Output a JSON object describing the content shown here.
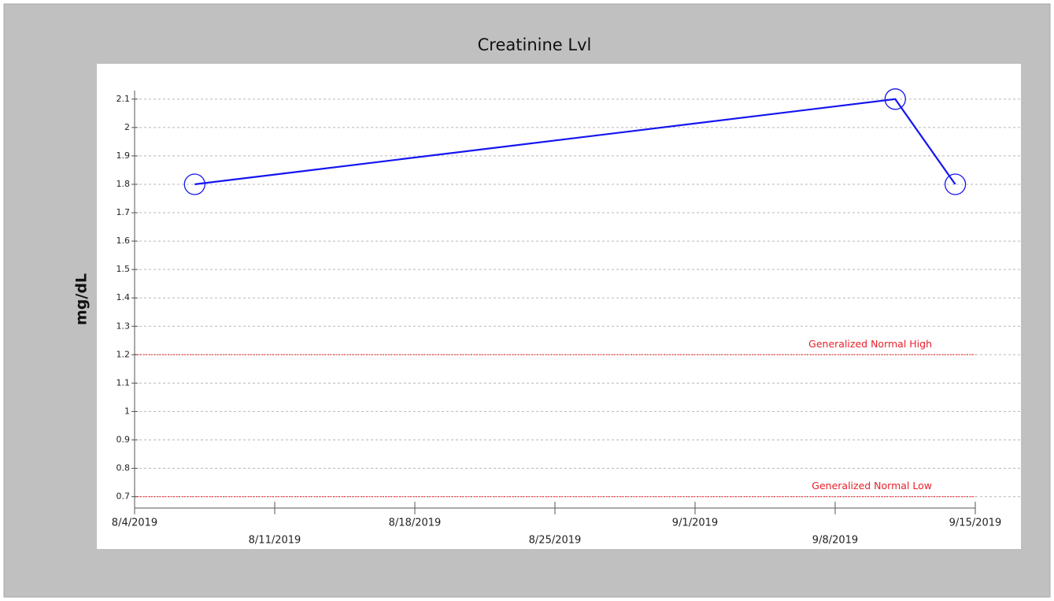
{
  "chart_data": {
    "type": "line",
    "title": "Creatinine Lvl",
    "y_label": "mg/dL",
    "x": [
      "8/7/2019",
      "9/11/2019",
      "9/14/2019"
    ],
    "series": [
      {
        "name": "Creatinine Lvl",
        "color": "#1515f0",
        "values": [
          1.8,
          2.1,
          1.8
        ]
      }
    ],
    "xlim": [
      "8/4/2019",
      "9/15/2019"
    ],
    "xticks": [
      "8/4/2019",
      "8/11/2019",
      "8/18/2019",
      "8/25/2019",
      "9/1/2019",
      "9/8/2019",
      "9/15/2019"
    ],
    "ylim": [
      0.66,
      2.13
    ],
    "yticks": [
      0.7,
      0.8,
      0.9,
      1,
      1.1,
      1.2,
      1.3,
      1.4,
      1.5,
      1.6,
      1.7,
      1.8,
      1.9,
      2,
      2.1
    ],
    "grid": true,
    "reference_lines": [
      {
        "value": 1.2,
        "label": "Generalized Normal High",
        "color": "#e8202a"
      },
      {
        "value": 0.7,
        "label": "Generalized Normal Low",
        "color": "#e8202a"
      }
    ]
  }
}
